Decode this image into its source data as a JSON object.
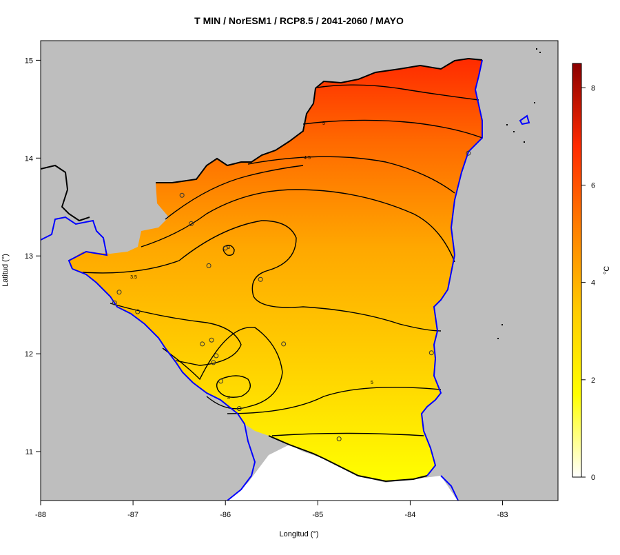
{
  "chart_data": {
    "type": "heatmap",
    "title": "T MIN / NorESM1 / RCP8.5 / 2041-2060 / MAYO",
    "xlabel": "Longitud (°)",
    "ylabel": "Latitud (°)",
    "xlim": [
      -88,
      -82.4
    ],
    "ylim": [
      10.5,
      15.2
    ],
    "x_ticks": [
      "-88",
      "-87",
      "-86",
      "-85",
      "-84",
      "-83"
    ],
    "y_ticks": [
      "15",
      "14",
      "13",
      "12",
      "11"
    ],
    "colorbar": {
      "label": "°C",
      "range": [
        0,
        8.5
      ],
      "ticks": [
        "0",
        "2",
        "4",
        "6",
        "8"
      ],
      "colors": [
        "#ffffff",
        "#ffff00",
        "#ffcc00",
        "#ff8000",
        "#ff2a00",
        "#8b0000"
      ]
    },
    "contours": [
      {
        "label": "3",
        "value": 3
      },
      {
        "label": "3.5",
        "value": 3.5
      },
      {
        "label": "4",
        "value": 4
      },
      {
        "label": "4.5",
        "value": 4.5
      },
      {
        "label": "5",
        "value": 5
      }
    ],
    "stations": [
      {
        "lon": -86.47,
        "lat": 13.62
      },
      {
        "lon": -86.37,
        "lat": 13.33
      },
      {
        "lon": -86.0,
        "lat": 13.08
      },
      {
        "lon": -86.18,
        "lat": 12.9
      },
      {
        "lon": -85.62,
        "lat": 12.76
      },
      {
        "lon": -87.15,
        "lat": 12.63
      },
      {
        "lon": -87.2,
        "lat": 12.52
      },
      {
        "lon": -86.95,
        "lat": 12.43
      },
      {
        "lon": -86.25,
        "lat": 12.1
      },
      {
        "lon": -86.15,
        "lat": 12.14
      },
      {
        "lon": -85.37,
        "lat": 12.1
      },
      {
        "lon": -86.1,
        "lat": 11.98
      },
      {
        "lon": -86.13,
        "lat": 11.91
      },
      {
        "lon": -86.05,
        "lat": 11.72
      },
      {
        "lon": -85.85,
        "lat": 11.44
      },
      {
        "lon": -84.77,
        "lat": 11.13
      },
      {
        "lon": -83.77,
        "lat": 12.01
      },
      {
        "lon": -83.37,
        "lat": 14.05
      }
    ],
    "colors": {
      "land_mask": "#bebebe",
      "water": "#ffffff",
      "coast": "#0000ff",
      "border": "#000000"
    }
  }
}
